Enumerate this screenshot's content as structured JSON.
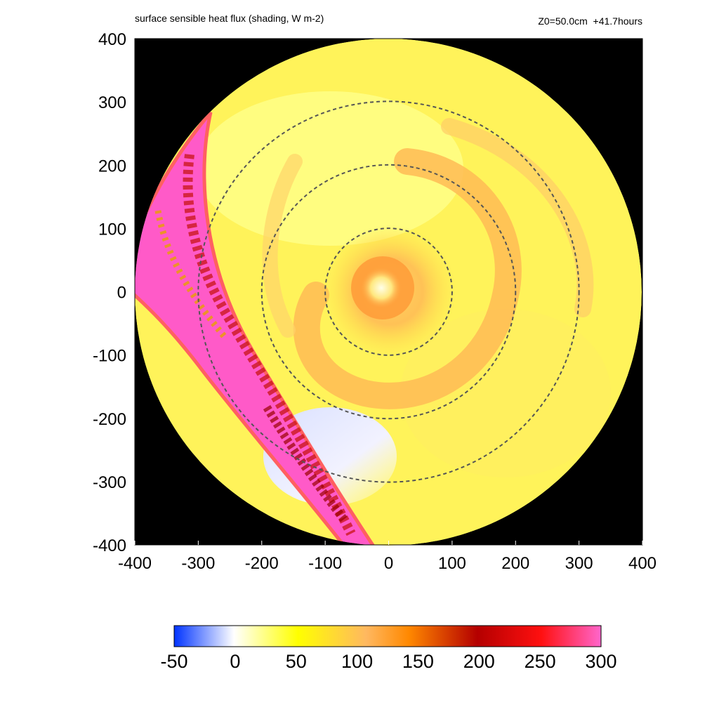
{
  "titles": {
    "left": "surface sensible heat flux (shading, W m-2)",
    "right": "Z0=50.0cm  +41.7hours"
  },
  "chart_data": {
    "type": "heatmap",
    "title": "surface sensible heat flux (shading, W m-2)",
    "annotation": "Z0=50.0cm  +41.7hours",
    "xlim": [
      -400,
      400
    ],
    "ylim": [
      -400,
      400
    ],
    "x_ticks": [
      "-400",
      "-300",
      "-200",
      "-100",
      "0",
      "100",
      "200",
      "300",
      "400"
    ],
    "y_ticks": [
      "400",
      "300",
      "200",
      "100",
      "0",
      "-100",
      "-200",
      "-300",
      "-400"
    ],
    "domain_radius": 400,
    "range_rings_radius": [
      100,
      200,
      300
    ],
    "background_color": "#000000",
    "colorbar": {
      "min": -50,
      "max": 300,
      "ticks": [
        "-50",
        "0",
        "50",
        "100",
        "150",
        "200",
        "250",
        "300"
      ],
      "colors": [
        "#0033ff",
        "#ffffff",
        "#ffff00",
        "#ff8800",
        "#c80000",
        "#ff0000",
        "#ff55cc"
      ]
    }
  }
}
